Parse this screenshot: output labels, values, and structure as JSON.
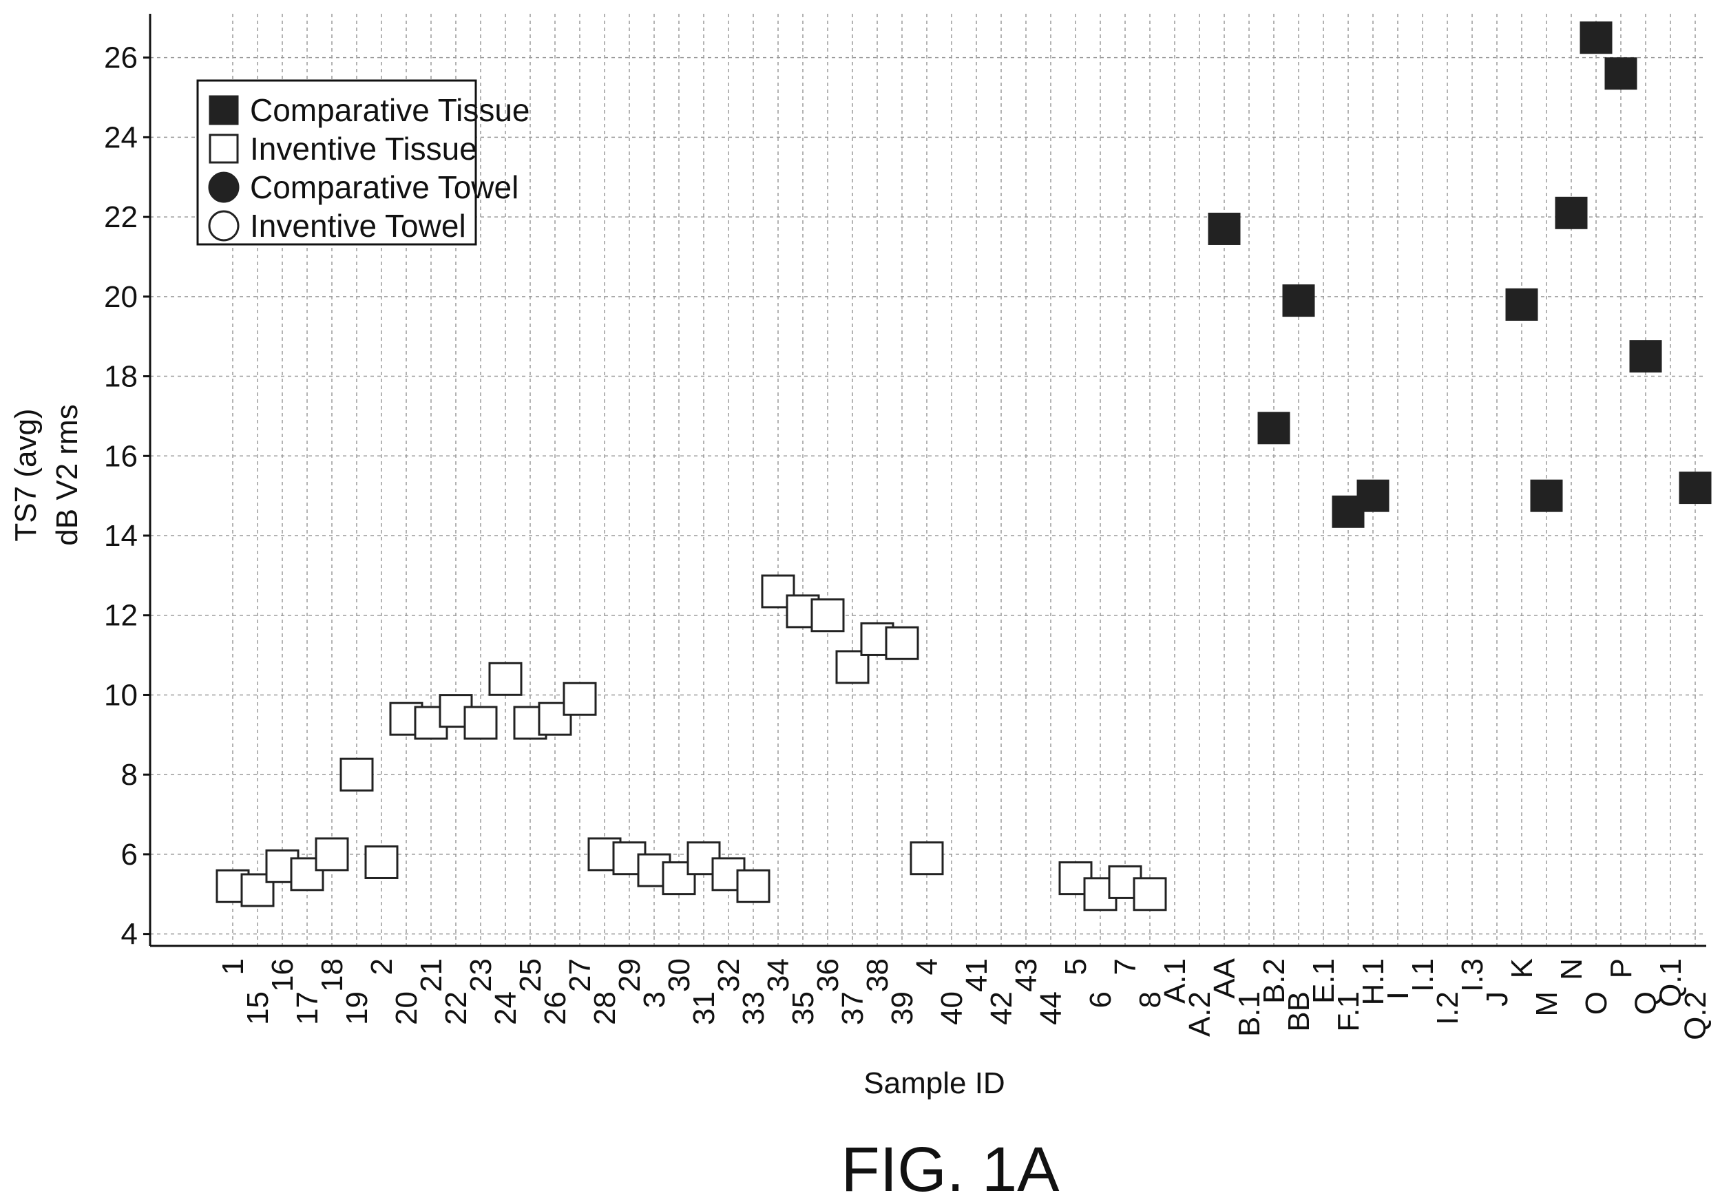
{
  "figure": {
    "label": "FIG. 1A"
  },
  "chart_data": {
    "type": "scatter",
    "xlabel": "Sample ID",
    "ylabel_lines": [
      "TS7 (avg)",
      "dB V2 rms"
    ],
    "ylim": [
      3.7,
      27.1
    ],
    "yticks": [
      4,
      6,
      8,
      10,
      12,
      14,
      16,
      18,
      20,
      22,
      24,
      26
    ],
    "grid": true,
    "legend_position": "top-left",
    "categories": [
      "1",
      "15",
      "16",
      "17",
      "18",
      "19",
      "2",
      "20",
      "21",
      "22",
      "23",
      "24",
      "25",
      "26",
      "27",
      "28",
      "29",
      "3",
      "30",
      "31",
      "32",
      "33",
      "34",
      "35",
      "36",
      "37",
      "38",
      "39",
      "4",
      "40",
      "41",
      "42",
      "43",
      "44",
      "5",
      "6",
      "7",
      "8",
      "A.1",
      "A.2",
      "AA",
      "B.1",
      "B.2",
      "BB",
      "E.1",
      "F.1",
      "H.1",
      "I",
      "I.1",
      "I.2",
      "I.3",
      "J",
      "K",
      "M",
      "N",
      "O",
      "P",
      "Q",
      "Q.1",
      "Q.2"
    ],
    "series": [
      {
        "name": "Comparative Tissue",
        "marker": "square",
        "filled": true,
        "color": "#222222",
        "points": [
          {
            "x": "AA",
            "y": 21.7
          },
          {
            "x": "B.2",
            "y": 16.7
          },
          {
            "x": "BB",
            "y": 19.9
          },
          {
            "x": "F.1",
            "y": 14.6
          },
          {
            "x": "H.1",
            "y": 15.0
          },
          {
            "x": "K",
            "y": 19.8
          },
          {
            "x": "M",
            "y": 15.0
          },
          {
            "x": "N",
            "y": 22.1
          },
          {
            "x": "O",
            "y": 26.5
          },
          {
            "x": "P",
            "y": 25.6
          },
          {
            "x": "Q",
            "y": 18.5
          },
          {
            "x": "Q.2",
            "y": 15.2
          }
        ]
      },
      {
        "name": "Inventive Tissue",
        "marker": "square",
        "filled": false,
        "color": "#222222",
        "points": [
          {
            "x": "1",
            "y": 5.2
          },
          {
            "x": "15",
            "y": 5.1
          },
          {
            "x": "16",
            "y": 5.7
          },
          {
            "x": "17",
            "y": 5.5
          },
          {
            "x": "18",
            "y": 6.0
          },
          {
            "x": "19",
            "y": 8.0
          },
          {
            "x": "2",
            "y": 5.8
          },
          {
            "x": "20",
            "y": 9.4
          },
          {
            "x": "21",
            "y": 9.3
          },
          {
            "x": "22",
            "y": 9.6
          },
          {
            "x": "23",
            "y": 9.3
          },
          {
            "x": "24",
            "y": 10.4
          },
          {
            "x": "25",
            "y": 9.3
          },
          {
            "x": "26",
            "y": 9.4
          },
          {
            "x": "27",
            "y": 9.9
          },
          {
            "x": "28",
            "y": 6.0
          },
          {
            "x": "29",
            "y": 5.9
          },
          {
            "x": "3",
            "y": 5.6
          },
          {
            "x": "30",
            "y": 5.4
          },
          {
            "x": "31",
            "y": 5.9
          },
          {
            "x": "32",
            "y": 5.5
          },
          {
            "x": "33",
            "y": 5.2
          },
          {
            "x": "34",
            "y": 12.6
          },
          {
            "x": "35",
            "y": 12.1
          },
          {
            "x": "36",
            "y": 12.0
          },
          {
            "x": "37",
            "y": 10.7
          },
          {
            "x": "38",
            "y": 11.4
          },
          {
            "x": "39",
            "y": 11.3
          },
          {
            "x": "4",
            "y": 5.9
          },
          {
            "x": "5",
            "y": 5.4
          },
          {
            "x": "6",
            "y": 5.0
          },
          {
            "x": "7",
            "y": 5.3
          },
          {
            "x": "8",
            "y": 5.0
          }
        ]
      },
      {
        "name": "Comparative Towel",
        "marker": "circle",
        "filled": true,
        "color": "#222222",
        "points": []
      },
      {
        "name": "Inventive Towel",
        "marker": "circle",
        "filled": false,
        "color": "#222222",
        "points": []
      }
    ]
  }
}
